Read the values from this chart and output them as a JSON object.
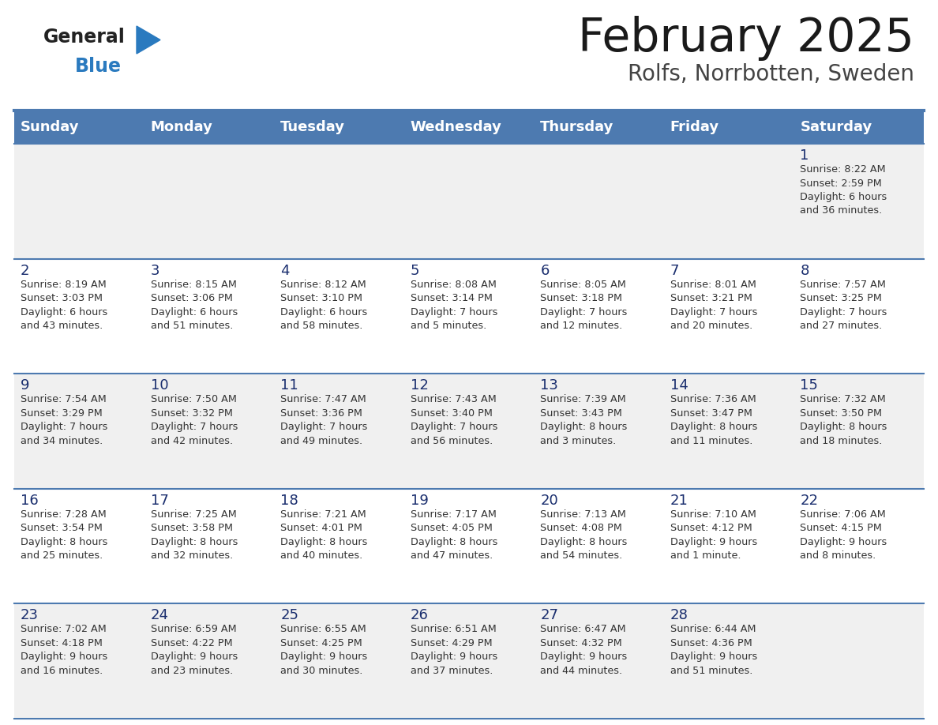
{
  "title": "February 2025",
  "subtitle": "Rolfs, Norrbotten, Sweden",
  "days_of_week": [
    "Sunday",
    "Monday",
    "Tuesday",
    "Wednesday",
    "Thursday",
    "Friday",
    "Saturday"
  ],
  "header_bg": "#4d7ab0",
  "header_text": "#ffffff",
  "row_bg_even": "#f0f0f0",
  "row_bg_odd": "#ffffff",
  "cell_text_color": "#333333",
  "day_number_color": "#1a2e6e",
  "separator_color": "#4d7ab0",
  "title_color": "#1a1a1a",
  "subtitle_color": "#444444",
  "logo_text_color": "#222222",
  "logo_blue_color": "#2a7abf",
  "calendar_data": [
    [
      {
        "day": null,
        "info": ""
      },
      {
        "day": null,
        "info": ""
      },
      {
        "day": null,
        "info": ""
      },
      {
        "day": null,
        "info": ""
      },
      {
        "day": null,
        "info": ""
      },
      {
        "day": null,
        "info": ""
      },
      {
        "day": 1,
        "info": "Sunrise: 8:22 AM\nSunset: 2:59 PM\nDaylight: 6 hours\nand 36 minutes."
      }
    ],
    [
      {
        "day": 2,
        "info": "Sunrise: 8:19 AM\nSunset: 3:03 PM\nDaylight: 6 hours\nand 43 minutes."
      },
      {
        "day": 3,
        "info": "Sunrise: 8:15 AM\nSunset: 3:06 PM\nDaylight: 6 hours\nand 51 minutes."
      },
      {
        "day": 4,
        "info": "Sunrise: 8:12 AM\nSunset: 3:10 PM\nDaylight: 6 hours\nand 58 minutes."
      },
      {
        "day": 5,
        "info": "Sunrise: 8:08 AM\nSunset: 3:14 PM\nDaylight: 7 hours\nand 5 minutes."
      },
      {
        "day": 6,
        "info": "Sunrise: 8:05 AM\nSunset: 3:18 PM\nDaylight: 7 hours\nand 12 minutes."
      },
      {
        "day": 7,
        "info": "Sunrise: 8:01 AM\nSunset: 3:21 PM\nDaylight: 7 hours\nand 20 minutes."
      },
      {
        "day": 8,
        "info": "Sunrise: 7:57 AM\nSunset: 3:25 PM\nDaylight: 7 hours\nand 27 minutes."
      }
    ],
    [
      {
        "day": 9,
        "info": "Sunrise: 7:54 AM\nSunset: 3:29 PM\nDaylight: 7 hours\nand 34 minutes."
      },
      {
        "day": 10,
        "info": "Sunrise: 7:50 AM\nSunset: 3:32 PM\nDaylight: 7 hours\nand 42 minutes."
      },
      {
        "day": 11,
        "info": "Sunrise: 7:47 AM\nSunset: 3:36 PM\nDaylight: 7 hours\nand 49 minutes."
      },
      {
        "day": 12,
        "info": "Sunrise: 7:43 AM\nSunset: 3:40 PM\nDaylight: 7 hours\nand 56 minutes."
      },
      {
        "day": 13,
        "info": "Sunrise: 7:39 AM\nSunset: 3:43 PM\nDaylight: 8 hours\nand 3 minutes."
      },
      {
        "day": 14,
        "info": "Sunrise: 7:36 AM\nSunset: 3:47 PM\nDaylight: 8 hours\nand 11 minutes."
      },
      {
        "day": 15,
        "info": "Sunrise: 7:32 AM\nSunset: 3:50 PM\nDaylight: 8 hours\nand 18 minutes."
      }
    ],
    [
      {
        "day": 16,
        "info": "Sunrise: 7:28 AM\nSunset: 3:54 PM\nDaylight: 8 hours\nand 25 minutes."
      },
      {
        "day": 17,
        "info": "Sunrise: 7:25 AM\nSunset: 3:58 PM\nDaylight: 8 hours\nand 32 minutes."
      },
      {
        "day": 18,
        "info": "Sunrise: 7:21 AM\nSunset: 4:01 PM\nDaylight: 8 hours\nand 40 minutes."
      },
      {
        "day": 19,
        "info": "Sunrise: 7:17 AM\nSunset: 4:05 PM\nDaylight: 8 hours\nand 47 minutes."
      },
      {
        "day": 20,
        "info": "Sunrise: 7:13 AM\nSunset: 4:08 PM\nDaylight: 8 hours\nand 54 minutes."
      },
      {
        "day": 21,
        "info": "Sunrise: 7:10 AM\nSunset: 4:12 PM\nDaylight: 9 hours\nand 1 minute."
      },
      {
        "day": 22,
        "info": "Sunrise: 7:06 AM\nSunset: 4:15 PM\nDaylight: 9 hours\nand 8 minutes."
      }
    ],
    [
      {
        "day": 23,
        "info": "Sunrise: 7:02 AM\nSunset: 4:18 PM\nDaylight: 9 hours\nand 16 minutes."
      },
      {
        "day": 24,
        "info": "Sunrise: 6:59 AM\nSunset: 4:22 PM\nDaylight: 9 hours\nand 23 minutes."
      },
      {
        "day": 25,
        "info": "Sunrise: 6:55 AM\nSunset: 4:25 PM\nDaylight: 9 hours\nand 30 minutes."
      },
      {
        "day": 26,
        "info": "Sunrise: 6:51 AM\nSunset: 4:29 PM\nDaylight: 9 hours\nand 37 minutes."
      },
      {
        "day": 27,
        "info": "Sunrise: 6:47 AM\nSunset: 4:32 PM\nDaylight: 9 hours\nand 44 minutes."
      },
      {
        "day": 28,
        "info": "Sunrise: 6:44 AM\nSunset: 4:36 PM\nDaylight: 9 hours\nand 51 minutes."
      },
      {
        "day": null,
        "info": ""
      }
    ]
  ]
}
